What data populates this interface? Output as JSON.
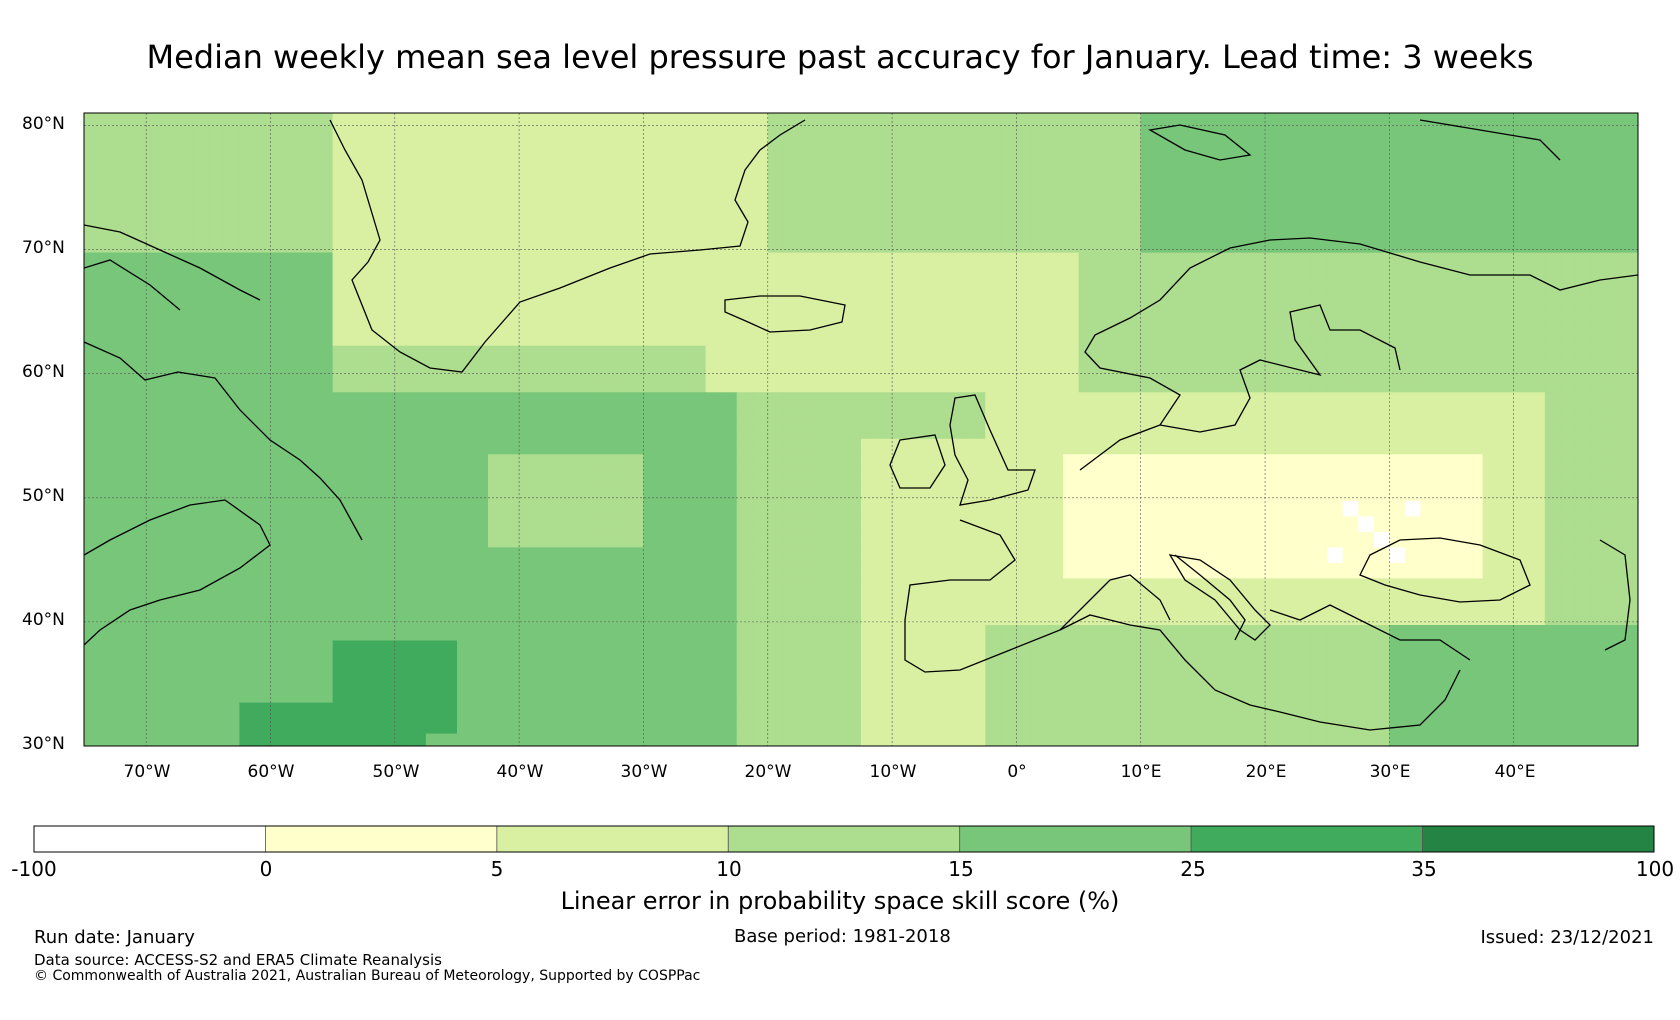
{
  "title": "Median weekly mean sea level pressure past accuracy for January. Lead time: 3 weeks",
  "map": {
    "lon_range": [
      -75,
      50
    ],
    "lat_range": [
      30,
      81
    ],
    "lat_ticks": [
      "80°N",
      "70°N",
      "60°N",
      "50°N",
      "40°N",
      "30°N"
    ],
    "lon_ticks": [
      "70°W",
      "60°W",
      "50°W",
      "40°W",
      "30°W",
      "20°W",
      "10°W",
      "0°",
      "10°E",
      "20°E",
      "30°E",
      "40°E"
    ],
    "palette": {
      "neg": "#ffffff",
      "c0_5": "#ffffcc",
      "c5_10": "#d9f0a3",
      "c10_15": "#addd8e",
      "c15_25": "#78c679",
      "c25_35": "#41ab5d",
      "c35_100": "#238443"
    }
  },
  "colorbar": {
    "title": "Linear error in probability space skill score (%)",
    "ticks": [
      "-100",
      "0",
      "5",
      "10",
      "15",
      "25",
      "35",
      "100"
    ],
    "colors": [
      "#ffffff",
      "#ffffcc",
      "#d9f0a3",
      "#addd8e",
      "#78c679",
      "#41ab5d",
      "#238443"
    ]
  },
  "footer": {
    "run_date": "Run date: January",
    "base_period": "Base period: 1981-2018",
    "issued": "Issued: 23/12/2021",
    "data_source": "Data source: ACCESS-S2 and ERA5 Climate Reanalysis",
    "copyright": "© Commonwealth of Australia 2021, Australian Bureau of Meteorology, Supported by COSPPac"
  }
}
